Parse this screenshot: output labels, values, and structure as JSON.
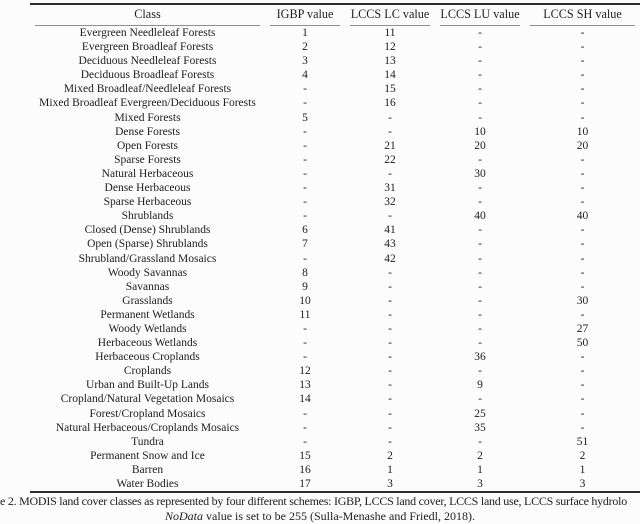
{
  "table": {
    "columns": [
      "Class",
      "IGBP value",
      "LCCS LC value",
      "LCCS LU value",
      "LCCS SH value"
    ],
    "rows": [
      [
        "Evergreen Needleleaf Forests",
        "1",
        "11",
        "-",
        "-"
      ],
      [
        "Evergreen Broadleaf Forests",
        "2",
        "12",
        "-",
        "-"
      ],
      [
        "Deciduous Needleleaf Forests",
        "3",
        "13",
        "-",
        "-"
      ],
      [
        "Deciduous Broadleaf Forests",
        "4",
        "14",
        "-",
        "-"
      ],
      [
        "Mixed Broadleaf/Needleleaf Forests",
        "-",
        "15",
        "-",
        "-"
      ],
      [
        "Mixed Broadleaf Evergreen/Deciduous Forests",
        "-",
        "16",
        "-",
        "-"
      ],
      [
        "Mixed Forests",
        "5",
        "-",
        "-",
        "-"
      ],
      [
        "Dense Forests",
        "-",
        "-",
        "10",
        "10"
      ],
      [
        "Open Forests",
        "-",
        "21",
        "20",
        "20"
      ],
      [
        "Sparse Forests",
        "-",
        "22",
        "-",
        "-"
      ],
      [
        "Natural Herbaceous",
        "-",
        "-",
        "30",
        "-"
      ],
      [
        "Dense Herbaceous",
        "-",
        "31",
        "-",
        "-"
      ],
      [
        "Sparse Herbaceous",
        "-",
        "32",
        "-",
        "-"
      ],
      [
        "Shrublands",
        "-",
        "-",
        "40",
        "40"
      ],
      [
        "Closed (Dense) Shrublands",
        "6",
        "41",
        "-",
        "-"
      ],
      [
        "Open (Sparse) Shrublands",
        "7",
        "43",
        "-",
        "-"
      ],
      [
        "Shrubland/Grassland Mosaics",
        "-",
        "42",
        "-",
        "-"
      ],
      [
        "Woody Savannas",
        "8",
        "-",
        "-",
        "-"
      ],
      [
        "Savannas",
        "9",
        "-",
        "-",
        "-"
      ],
      [
        "Grasslands",
        "10",
        "-",
        "-",
        "30"
      ],
      [
        "Permanent Wetlands",
        "11",
        "-",
        "-",
        "-"
      ],
      [
        "Woody Wetlands",
        "-",
        "-",
        "-",
        "27"
      ],
      [
        "Herbaceous Wetlands",
        "-",
        "-",
        "-",
        "50"
      ],
      [
        "Herbaceous Croplands",
        "-",
        "-",
        "36",
        "-"
      ],
      [
        "Croplands",
        "12",
        "-",
        "-",
        "-"
      ],
      [
        "Urban and Built-Up Lands",
        "13",
        "-",
        "9",
        "-"
      ],
      [
        "Cropland/Natural Vegetation Mosaics",
        "14",
        "-",
        "-",
        "-"
      ],
      [
        "Forest/Cropland Mosaics",
        "-",
        "-",
        "25",
        "-"
      ],
      [
        "Natural Herbaceous/Croplands Mosaics",
        "-",
        "-",
        "35",
        "-"
      ],
      [
        "Tundra",
        "-",
        "-",
        "-",
        "51"
      ],
      [
        "Permanent Snow and Ice",
        "15",
        "2",
        "2",
        "2"
      ],
      [
        "Barren",
        "16",
        "1",
        "1",
        "1"
      ],
      [
        "Water Bodies",
        "17",
        "3",
        "3",
        "3"
      ]
    ]
  },
  "caption": {
    "line1": "e 2. MODIS land cover classes as represented by four different schemes: IGBP, LCCS land cover, LCCS land use, LCCS surface hydrolo",
    "note_italic": "NoData",
    "note_rest": " value is set to be 255 (Sulla-Menashe and Friedl, 2018)."
  },
  "colors": {
    "text": "#1d1d1d",
    "heavy_rule": "#2d2d2d",
    "light_rule": "#8f8f8f",
    "background": "#fcfcfc"
  }
}
